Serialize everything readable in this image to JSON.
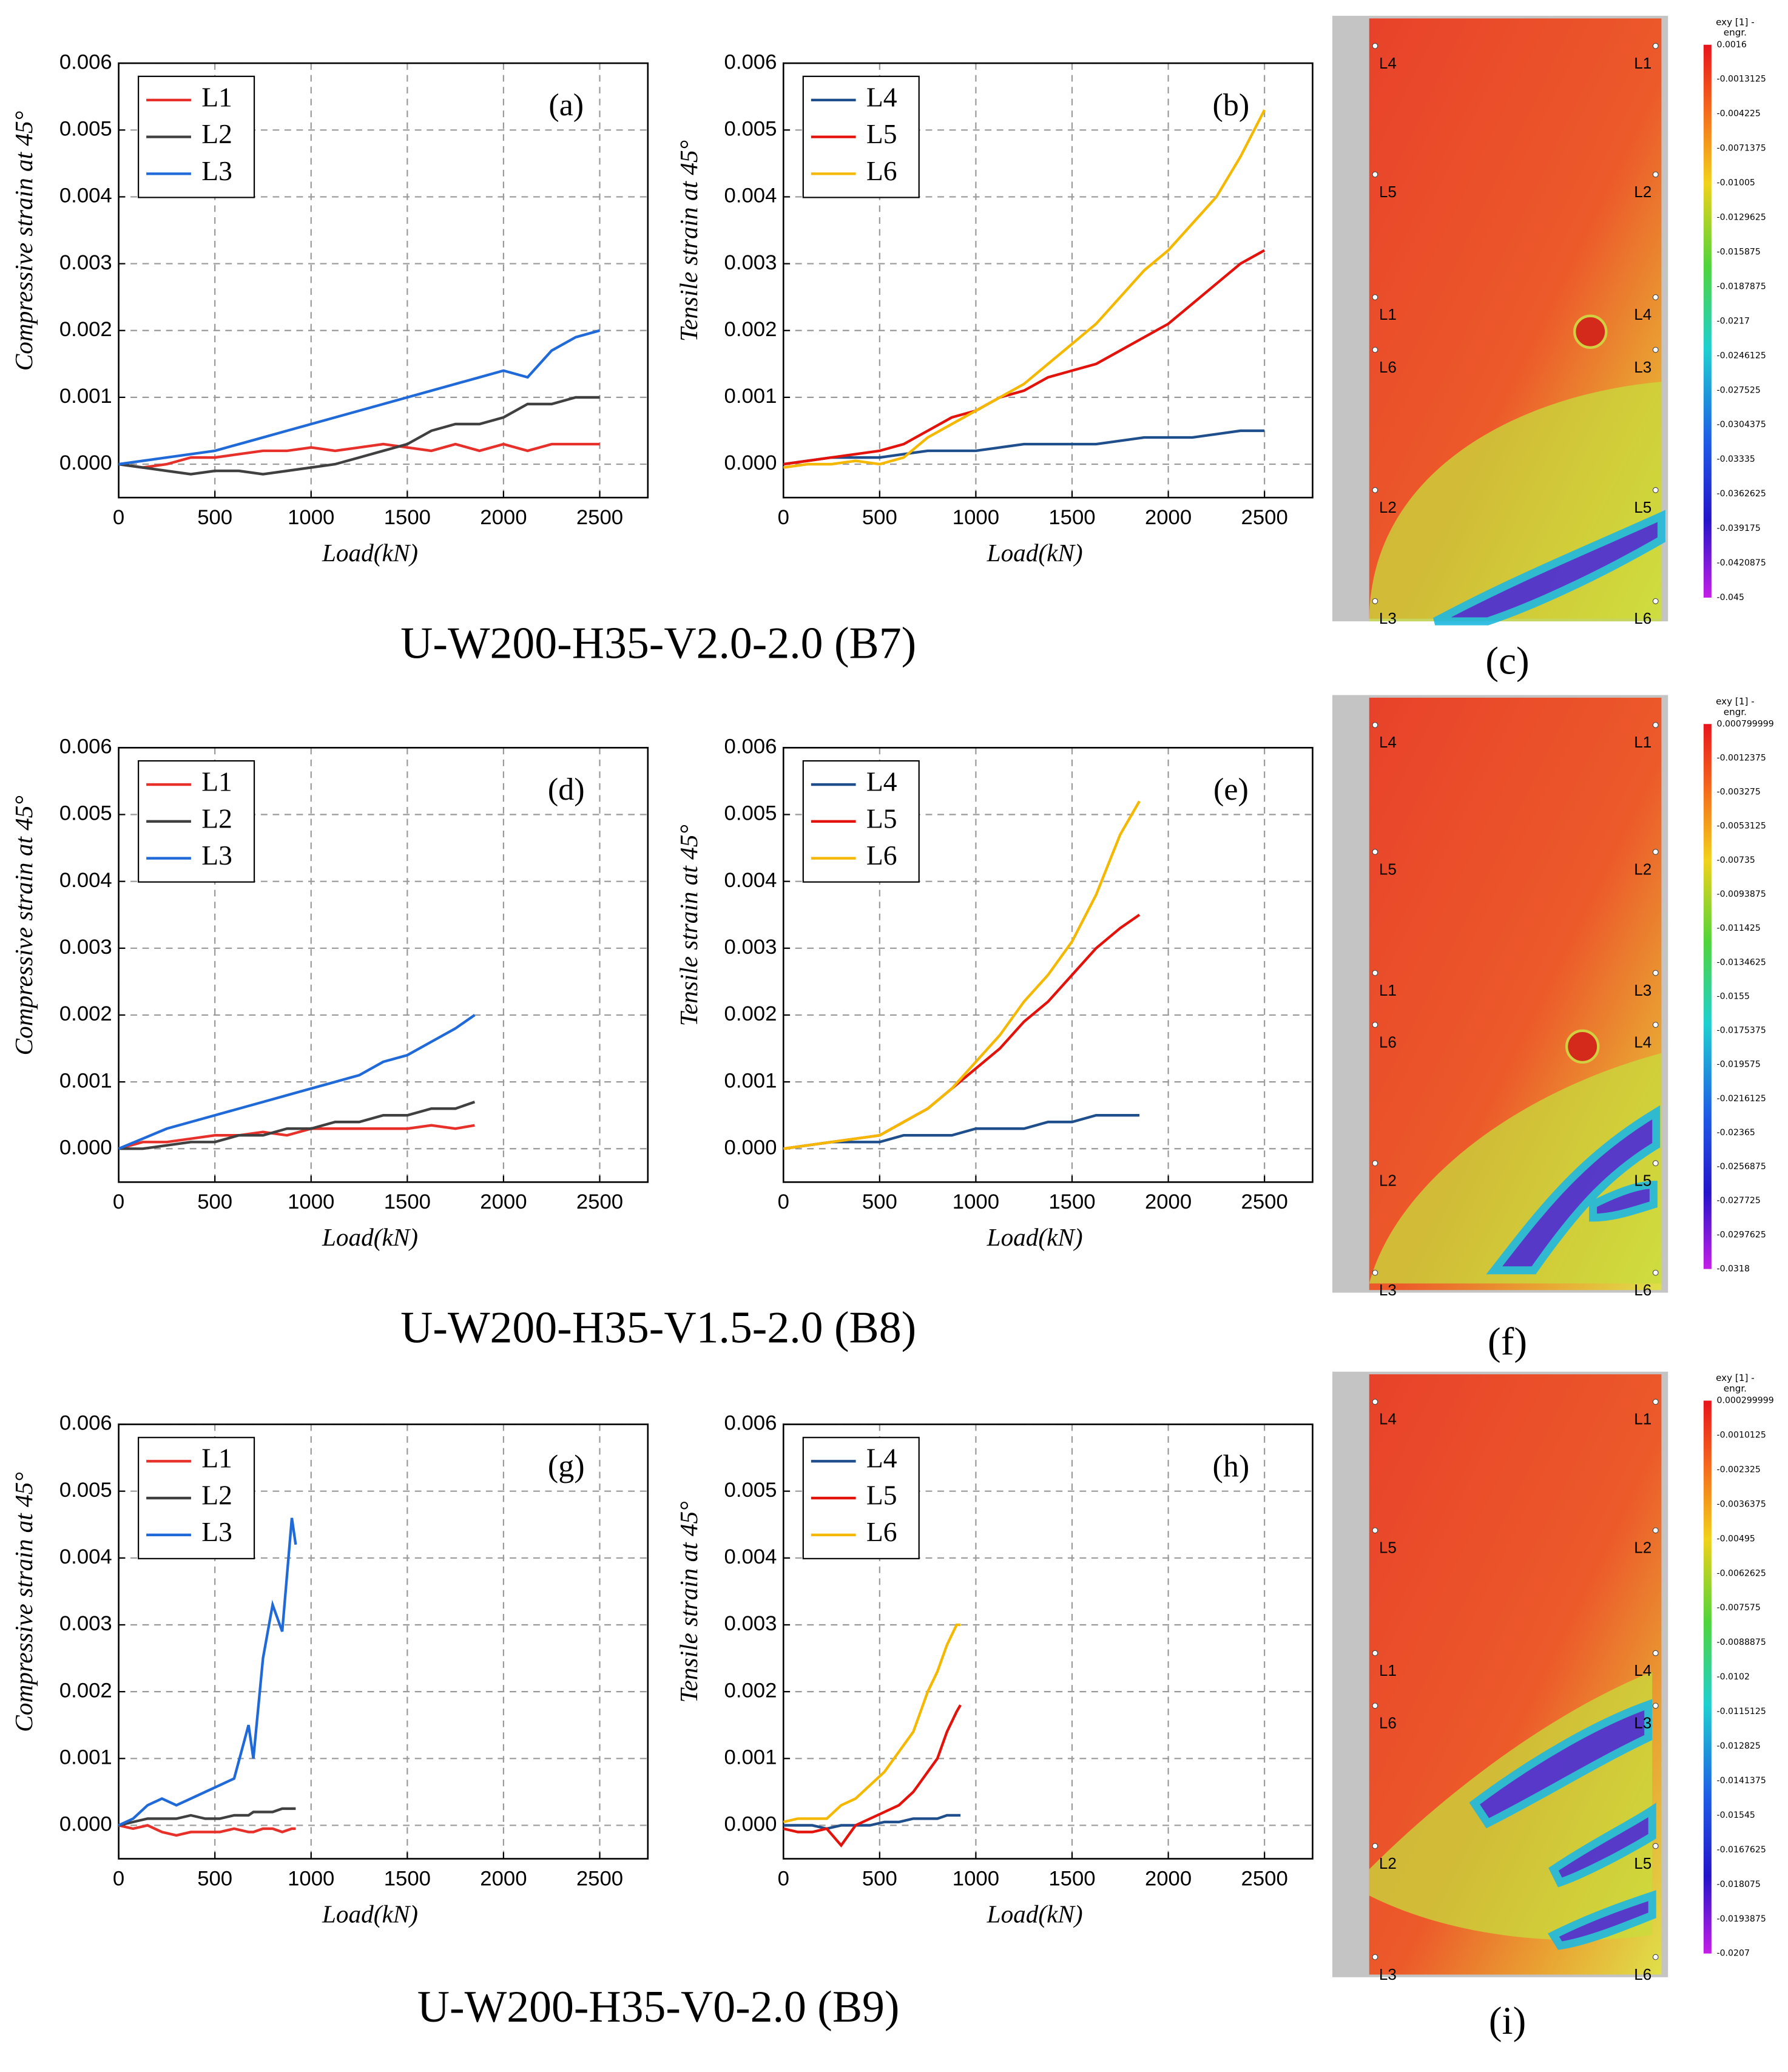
{
  "chart_data": [
    {
      "type": "line",
      "panel_label": "(a)",
      "ylabel": "Compressive strain at 45°",
      "xlabel": "Load(kN)",
      "legend": "upper left",
      "grid": true,
      "xlim": [
        0,
        2750
      ],
      "ylim": [
        -0.0005,
        0.006
      ],
      "xticks": [
        0,
        500,
        1000,
        1500,
        2000,
        2500
      ],
      "yticks": [
        {
          "value": 0,
          "label": "0.000"
        },
        {
          "value": 0.001,
          "label": "0.001"
        },
        {
          "value": 0.002,
          "label": "0.002"
        },
        {
          "value": 0.003,
          "label": "0.003"
        },
        {
          "value": 0.004,
          "label": "0.004"
        },
        {
          "value": 0.005,
          "label": "0.005"
        },
        {
          "value": 0.006,
          "label": "0.006"
        }
      ],
      "x": [
        0,
        125,
        250,
        375,
        500,
        625,
        750,
        875,
        1000,
        1125,
        1250,
        1375,
        1500,
        1625,
        1750,
        1875,
        2000,
        2125,
        2250,
        2375,
        2500
      ],
      "series": [
        {
          "name": "L1",
          "color": "#e8302a",
          "values": [
            0,
            -5e-05,
            0,
            0.0001,
            0.0001,
            0.00015,
            0.0002,
            0.0002,
            0.00025,
            0.0002,
            0.00025,
            0.0003,
            0.00025,
            0.0002,
            0.0003,
            0.0002,
            0.0003,
            0.0002,
            0.0003,
            0.0003,
            0.0003
          ]
        },
        {
          "name": "L2",
          "color": "#404040",
          "values": [
            0,
            -5e-05,
            -0.0001,
            -0.00015,
            -0.0001,
            -0.0001,
            -0.00015,
            -0.0001,
            -5e-05,
            0,
            0.0001,
            0.0002,
            0.0003,
            0.0005,
            0.0006,
            0.0006,
            0.0007,
            0.0009,
            0.0009,
            0.001,
            0.001
          ]
        },
        {
          "name": "L3",
          "color": "#1f6ad8",
          "values": [
            0,
            5e-05,
            0.0001,
            0.00015,
            0.0002,
            0.0003,
            0.0004,
            0.0005,
            0.0006,
            0.0007,
            0.0008,
            0.0009,
            0.001,
            0.0011,
            0.0012,
            0.0013,
            0.0014,
            0.0013,
            0.0017,
            0.0019,
            0.002
          ]
        }
      ]
    },
    {
      "type": "line",
      "panel_label": "(b)",
      "ylabel": "Tensile strain at 45°",
      "xlabel": "Load(kN)",
      "legend": "upper left",
      "grid": true,
      "xlim": [
        0,
        2750
      ],
      "ylim": [
        -0.0005,
        0.006
      ],
      "xticks": [
        0,
        500,
        1000,
        1500,
        2000,
        2500
      ],
      "yticks": [
        {
          "value": 0,
          "label": "0.000"
        },
        {
          "value": 0.001,
          "label": "0.001"
        },
        {
          "value": 0.002,
          "label": "0.002"
        },
        {
          "value": 0.003,
          "label": "0.003"
        },
        {
          "value": 0.004,
          "label": "0.004"
        },
        {
          "value": 0.005,
          "label": "0.005"
        },
        {
          "value": 0.006,
          "label": "0.006"
        }
      ],
      "x": [
        0,
        125,
        250,
        375,
        500,
        625,
        750,
        875,
        1000,
        1125,
        1250,
        1375,
        1500,
        1625,
        1750,
        1875,
        2000,
        2125,
        2250,
        2375,
        2500
      ],
      "series": [
        {
          "name": "L4",
          "color": "#1f4e8c",
          "values": [
            0,
            5e-05,
            0.0001,
            0.0001,
            0.0001,
            0.00015,
            0.0002,
            0.0002,
            0.0002,
            0.00025,
            0.0003,
            0.0003,
            0.0003,
            0.0003,
            0.00035,
            0.0004,
            0.0004,
            0.0004,
            0.00045,
            0.0005,
            0.0005
          ]
        },
        {
          "name": "L5",
          "color": "#e3120b",
          "values": [
            0,
            5e-05,
            0.0001,
            0.00015,
            0.0002,
            0.0003,
            0.0005,
            0.0007,
            0.0008,
            0.001,
            0.0011,
            0.0013,
            0.0014,
            0.0015,
            0.0017,
            0.0019,
            0.0021,
            0.0024,
            0.0027,
            0.003,
            0.0032
          ]
        },
        {
          "name": "L6",
          "color": "#f5b800",
          "values": [
            -5e-05,
            0,
            0,
            5e-05,
            0,
            0.0001,
            0.0004,
            0.0006,
            0.0008,
            0.001,
            0.0012,
            0.0015,
            0.0018,
            0.0021,
            0.0025,
            0.0029,
            0.0032,
            0.0036,
            0.004,
            0.0046,
            0.0053
          ]
        }
      ]
    },
    {
      "type": "line",
      "panel_label": "(d)",
      "ylabel": "Compressive strain at 45°",
      "xlabel": "Load(kN)",
      "legend": "upper left",
      "grid": true,
      "xlim": [
        0,
        2750
      ],
      "ylim": [
        -0.0005,
        0.006
      ],
      "xticks": [
        0,
        500,
        1000,
        1500,
        2000,
        2500
      ],
      "yticks": [
        {
          "value": 0,
          "label": "0.000"
        },
        {
          "value": 0.001,
          "label": "0.001"
        },
        {
          "value": 0.002,
          "label": "0.002"
        },
        {
          "value": 0.003,
          "label": "0.003"
        },
        {
          "value": 0.004,
          "label": "0.004"
        },
        {
          "value": 0.005,
          "label": "0.005"
        },
        {
          "value": 0.006,
          "label": "0.006"
        }
      ],
      "x": [
        0,
        125,
        250,
        375,
        500,
        625,
        750,
        875,
        1000,
        1125,
        1250,
        1375,
        1500,
        1625,
        1750,
        1850
      ],
      "series": [
        {
          "name": "L1",
          "color": "#e8302a",
          "values": [
            0,
            0.0001,
            0.0001,
            0.00015,
            0.0002,
            0.0002,
            0.00025,
            0.0002,
            0.0003,
            0.0003,
            0.0003,
            0.0003,
            0.0003,
            0.00035,
            0.0003,
            0.00035
          ]
        },
        {
          "name": "L2",
          "color": "#404040",
          "values": [
            0,
            0,
            5e-05,
            0.0001,
            0.0001,
            0.0002,
            0.0002,
            0.0003,
            0.0003,
            0.0004,
            0.0004,
            0.0005,
            0.0005,
            0.0006,
            0.0006,
            0.0007
          ]
        },
        {
          "name": "L3",
          "color": "#1f6ad8",
          "values": [
            0,
            0.00015,
            0.0003,
            0.0004,
            0.0005,
            0.0006,
            0.0007,
            0.0008,
            0.0009,
            0.001,
            0.0011,
            0.0013,
            0.0014,
            0.0016,
            0.0018,
            0.002
          ]
        }
      ]
    },
    {
      "type": "line",
      "panel_label": "(e)",
      "ylabel": "Tensile strain at 45°",
      "xlabel": "Load(kN)",
      "legend": "upper left",
      "grid": true,
      "xlim": [
        0,
        2750
      ],
      "ylim": [
        -0.0005,
        0.006
      ],
      "xticks": [
        0,
        500,
        1000,
        1500,
        2000,
        2500
      ],
      "yticks": [
        {
          "value": 0,
          "label": "0.000"
        },
        {
          "value": 0.001,
          "label": "0.001"
        },
        {
          "value": 0.002,
          "label": "0.002"
        },
        {
          "value": 0.003,
          "label": "0.003"
        },
        {
          "value": 0.004,
          "label": "0.004"
        },
        {
          "value": 0.005,
          "label": "0.005"
        },
        {
          "value": 0.006,
          "label": "0.006"
        }
      ],
      "x": [
        0,
        125,
        250,
        375,
        500,
        625,
        750,
        875,
        1000,
        1125,
        1250,
        1375,
        1500,
        1625,
        1750,
        1850
      ],
      "series": [
        {
          "name": "L4",
          "color": "#1f4e8c",
          "values": [
            0,
            5e-05,
            0.0001,
            0.0001,
            0.0001,
            0.0002,
            0.0002,
            0.0002,
            0.0003,
            0.0003,
            0.0003,
            0.0004,
            0.0004,
            0.0005,
            0.0005,
            0.0005
          ]
        },
        {
          "name": "L5",
          "color": "#e3120b",
          "values": [
            0,
            5e-05,
            0.0001,
            0.00015,
            0.0002,
            0.0004,
            0.0006,
            0.0009,
            0.0012,
            0.0015,
            0.0019,
            0.0022,
            0.0026,
            0.003,
            0.0033,
            0.0035
          ]
        },
        {
          "name": "L6",
          "color": "#f5b800",
          "values": [
            0,
            5e-05,
            0.0001,
            0.00015,
            0.0002,
            0.0004,
            0.0006,
            0.0009,
            0.0013,
            0.0017,
            0.0022,
            0.0026,
            0.0031,
            0.0038,
            0.0047,
            0.0052
          ]
        }
      ]
    },
    {
      "type": "line",
      "panel_label": "(g)",
      "ylabel": "Compressive strain at 45°",
      "xlabel": "Load(kN)",
      "legend": "upper left",
      "grid": true,
      "xlim": [
        0,
        2750
      ],
      "ylim": [
        -0.0005,
        0.006
      ],
      "xticks": [
        0,
        500,
        1000,
        1500,
        2000,
        2500
      ],
      "yticks": [
        {
          "value": 0,
          "label": "0.000"
        },
        {
          "value": 0.001,
          "label": "0.001"
        },
        {
          "value": 0.002,
          "label": "0.002"
        },
        {
          "value": 0.003,
          "label": "0.003"
        },
        {
          "value": 0.004,
          "label": "0.004"
        },
        {
          "value": 0.005,
          "label": "0.005"
        },
        {
          "value": 0.006,
          "label": "0.006"
        }
      ],
      "x": [
        0,
        75,
        150,
        225,
        300,
        375,
        450,
        525,
        600,
        675,
        700,
        750,
        800,
        850,
        900,
        920
      ],
      "series": [
        {
          "name": "L1",
          "color": "#e8302a",
          "values": [
            0,
            -5e-05,
            0,
            -0.0001,
            -0.00015,
            -0.0001,
            -0.0001,
            -0.0001,
            -5e-05,
            -0.0001,
            -0.0001,
            -5e-05,
            -5e-05,
            -0.0001,
            -5e-05,
            -5e-05
          ]
        },
        {
          "name": "L2",
          "color": "#404040",
          "values": [
            0,
            5e-05,
            0.0001,
            0.0001,
            0.0001,
            0.00015,
            0.0001,
            0.0001,
            0.00015,
            0.00015,
            0.0002,
            0.0002,
            0.0002,
            0.00025,
            0.00025,
            0.00025
          ]
        },
        {
          "name": "L3",
          "color": "#1f6ad8",
          "values": [
            0,
            0.0001,
            0.0003,
            0.0004,
            0.0003,
            0.0004,
            0.0005,
            0.0006,
            0.0007,
            0.0015,
            0.001,
            0.0025,
            0.0033,
            0.0029,
            0.0046,
            0.0042
          ]
        }
      ]
    },
    {
      "type": "line",
      "panel_label": "(h)",
      "ylabel": "Tensile strain at 45°",
      "xlabel": "Load(kN)",
      "legend": "upper left",
      "grid": true,
      "xlim": [
        0,
        2750
      ],
      "ylim": [
        -0.0005,
        0.006
      ],
      "xticks": [
        0,
        500,
        1000,
        1500,
        2000,
        2500
      ],
      "yticks": [
        {
          "value": 0,
          "label": "0.000"
        },
        {
          "value": 0.001,
          "label": "0.001"
        },
        {
          "value": 0.002,
          "label": "0.002"
        },
        {
          "value": 0.003,
          "label": "0.003"
        },
        {
          "value": 0.004,
          "label": "0.004"
        },
        {
          "value": 0.005,
          "label": "0.005"
        },
        {
          "value": 0.006,
          "label": "0.006"
        }
      ],
      "x": [
        0,
        75,
        150,
        225,
        300,
        375,
        450,
        525,
        600,
        675,
        700,
        750,
        800,
        850,
        900,
        920
      ],
      "series": [
        {
          "name": "L4",
          "color": "#1f4e8c",
          "values": [
            0,
            0,
            0,
            -5e-05,
            0,
            0,
            0,
            5e-05,
            5e-05,
            0.0001,
            0.0001,
            0.0001,
            0.0001,
            0.00015,
            0.00015,
            0.00015
          ]
        },
        {
          "name": "L5",
          "color": "#e3120b",
          "values": [
            -5e-05,
            -0.0001,
            -0.0001,
            -5e-05,
            -0.0003,
            0,
            0.0001,
            0.0002,
            0.0003,
            0.0005,
            0.0006,
            0.0008,
            0.001,
            0.0014,
            0.0017,
            0.0018
          ]
        },
        {
          "name": "L6",
          "color": "#f5b800",
          "values": [
            5e-05,
            0.0001,
            0.0001,
            0.0001,
            0.0003,
            0.0004,
            0.0006,
            0.0008,
            0.0011,
            0.0014,
            0.0016,
            0.002,
            0.0023,
            0.0027,
            0.003,
            0.003
          ]
        }
      ]
    }
  ],
  "rows": [
    {
      "caption": "U-W200-H35-V2.0-2.0 (B7)"
    },
    {
      "caption": "U-W200-H35-V1.5-2.0 (B8)"
    },
    {
      "caption": "U-W200-H35-V0-2.0 (B9)"
    }
  ],
  "dic_images": [
    {
      "label": "(c)",
      "colorbar_title": [
        "exy [1] -",
        "engr."
      ],
      "colorbar_ticks": [
        "0.0016",
        "-0.0013125",
        "-0.004225",
        "-0.0071375",
        "-0.01005",
        "-0.0129625",
        "-0.015875",
        "-0.0187875",
        "-0.0217",
        "-0.0246125",
        "-0.027525",
        "-0.0304375",
        "-0.03335",
        "-0.0362625",
        "-0.039175",
        "-0.0420875",
        "-0.045"
      ],
      "point_labels": [
        "L4",
        "L1",
        "L5",
        "L2",
        "L1",
        "L4",
        "L6",
        "L3",
        "L2",
        "L5",
        "L3",
        "L6"
      ]
    },
    {
      "label": "(f)",
      "colorbar_title": [
        "exy [1] -",
        "engr."
      ],
      "colorbar_ticks": [
        "0.000799999",
        "-0.0012375",
        "-0.003275",
        "-0.0053125",
        "-0.00735",
        "-0.0093875",
        "-0.011425",
        "-0.0134625",
        "-0.0155",
        "-0.0175375",
        "-0.019575",
        "-0.0216125",
        "-0.02365",
        "-0.0256875",
        "-0.027725",
        "-0.0297625",
        "-0.0318"
      ],
      "point_labels": [
        "L4",
        "L1",
        "L5",
        "L2",
        "L1",
        "L3",
        "L6",
        "L4",
        "L2",
        "L5",
        "L3",
        "L6"
      ]
    },
    {
      "label": "(i)",
      "colorbar_title": [
        "exy [1] -",
        "engr."
      ],
      "colorbar_ticks": [
        "0.000299999",
        "-0.0010125",
        "-0.002325",
        "-0.0036375",
        "-0.00495",
        "-0.0062625",
        "-0.007575",
        "-0.0088875",
        "-0.0102",
        "-0.0115125",
        "-0.012825",
        "-0.0141375",
        "-0.01545",
        "-0.0167625",
        "-0.018075",
        "-0.0193875",
        "-0.0207"
      ],
      "point_labels": [
        "L4",
        "L1",
        "L5",
        "L2",
        "L1",
        "L4",
        "L6",
        "L3",
        "L2",
        "L5",
        "L3",
        "L6"
      ]
    }
  ]
}
